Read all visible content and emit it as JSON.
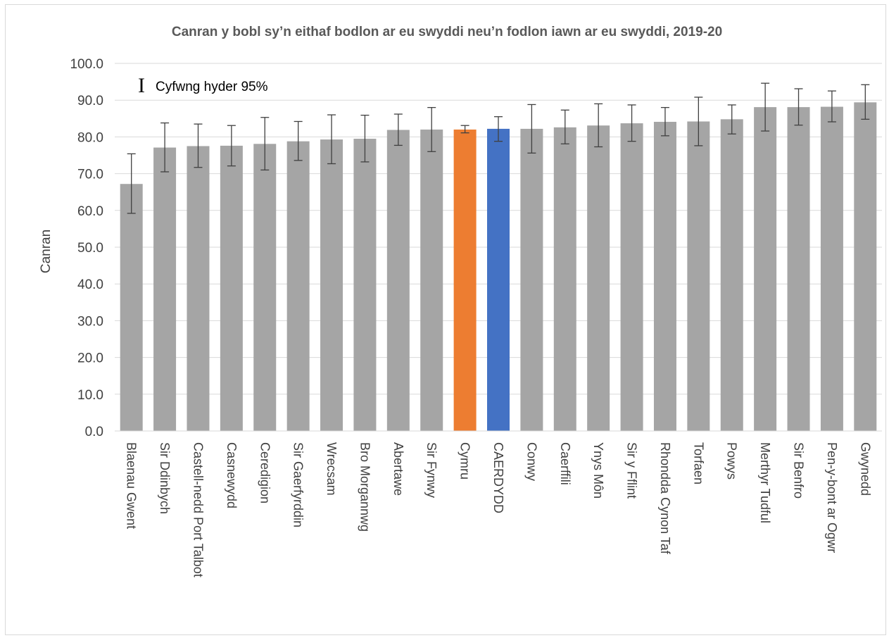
{
  "chart_data": {
    "type": "bar",
    "title": "Canran y bobl sy’n eithaf bodlon ar eu swyddi neu’n fodlon iawn ar eu swyddi, 2019-20",
    "ylabel": "Canran",
    "xlabel": "",
    "ylim": [
      0,
      100
    ],
    "yticks": [
      "0.0",
      "10.0",
      "20.0",
      "30.0",
      "40.0",
      "50.0",
      "60.0",
      "70.0",
      "80.0",
      "90.0",
      "100.0"
    ],
    "grid": true,
    "legend": {
      "symbol": "I",
      "label": "Cyfwng hyder 95%",
      "position": "top-left"
    },
    "colors": {
      "default": "#a5a5a5",
      "highlight_wales": "#ed7d31",
      "highlight_cardiff": "#4472c4",
      "error_bar": "#404040",
      "grid": "#d9d9d9"
    },
    "categories": [
      "Blaenau Gwent",
      "Sir Ddinbych",
      "Castell-nedd Port Talbot",
      "Casnewydd",
      "Ceredigion",
      "Sir Gaerfyrddin",
      "Wrecsam",
      "Bro Morgannwg",
      "Abertawe",
      "Sir Fynwy",
      "Cymru",
      "CAERDYDD",
      "Conwy",
      "Caerffili",
      "Ynys Môn",
      "Sir y Fflint",
      "Rhondda Cynon Taf",
      "Torfaen",
      "Powys",
      "Merthyr Tudful",
      "Sir Benfro",
      "Pen-y-bont ar Ogwr",
      "Gwynedd"
    ],
    "values": [
      67.2,
      77.1,
      77.5,
      77.6,
      78.1,
      78.8,
      79.3,
      79.5,
      81.9,
      82.0,
      82.0,
      82.2,
      82.2,
      82.6,
      83.1,
      83.7,
      84.1,
      84.2,
      84.8,
      88.1,
      88.1,
      88.2,
      89.4
    ],
    "ci_lower": [
      59.2,
      70.5,
      71.7,
      72.1,
      71.0,
      73.6,
      72.7,
      73.2,
      77.7,
      76.0,
      81.1,
      78.8,
      75.6,
      78.1,
      77.3,
      78.8,
      80.3,
      77.6,
      80.8,
      81.6,
      83.2,
      84.1,
      84.8
    ],
    "ci_upper": [
      75.4,
      83.8,
      83.5,
      83.1,
      85.3,
      84.2,
      86.0,
      85.9,
      86.2,
      88.0,
      83.1,
      85.5,
      88.8,
      87.3,
      89.0,
      88.7,
      88.0,
      90.8,
      88.7,
      94.6,
      93.1,
      92.5,
      94.2
    ],
    "bar_colors": [
      "default",
      "default",
      "default",
      "default",
      "default",
      "default",
      "default",
      "default",
      "default",
      "default",
      "highlight_wales",
      "highlight_cardiff",
      "default",
      "default",
      "default",
      "default",
      "default",
      "default",
      "default",
      "default",
      "default",
      "default",
      "default"
    ]
  }
}
